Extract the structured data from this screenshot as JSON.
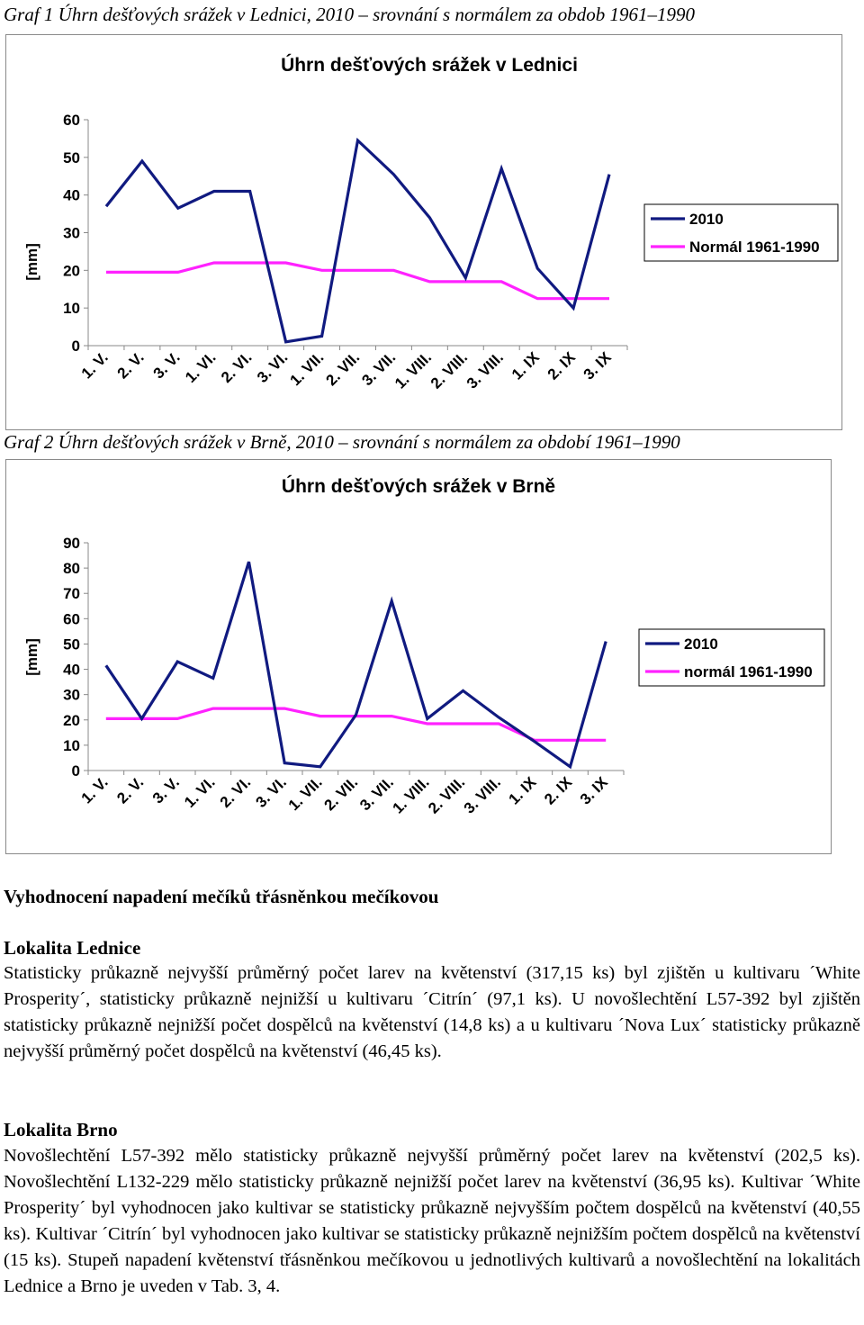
{
  "captions": {
    "graf1": "Graf 1 Úhrn dešťových srážek v Lednici, 2010 – srovnání s normálem za obdob 1961–1990",
    "graf2": "Graf 2 Úhrn dešťových srážek v Brně, 2010 – srovnání s normálem za období 1961–1990"
  },
  "colors": {
    "series_2010": "#101a80",
    "series_normal": "#ff22ff",
    "axis": "#888888"
  },
  "chart_data": [
    {
      "type": "line",
      "title": "Úhrn dešťových srážek v Lednici",
      "ylabel": "[mm]",
      "xlabel": "",
      "ylim": [
        0,
        60
      ],
      "yticks": [
        "0",
        "10",
        "20",
        "30",
        "40",
        "50",
        "60"
      ],
      "categories": [
        "1. V.",
        "2. V.",
        "3. V.",
        "1. VI.",
        "2. VI.",
        "3. VI.",
        "1. VII.",
        "2. VII.",
        "3. VII.",
        "1. VIII.",
        "2. VIII.",
        "3. VIII.",
        "1. IX",
        "2. IX",
        "3. IX"
      ],
      "legend_position": "right",
      "grid": false,
      "series": [
        {
          "name": "2010",
          "color": "#101a80",
          "values": [
            37,
            49,
            36.5,
            41,
            41,
            1,
            2.5,
            54.5,
            45.5,
            34,
            18,
            47,
            20.5,
            10,
            45.5
          ]
        },
        {
          "name": "Normál 1961-1990",
          "color": "#ff22ff",
          "values": [
            19.5,
            19.5,
            19.5,
            22,
            22,
            22,
            20,
            20,
            20,
            17,
            17,
            17,
            12.5,
            12.5,
            12.5
          ]
        }
      ]
    },
    {
      "type": "line",
      "title": "Úhrn dešťových srážek v Brně",
      "ylabel": "[mm]",
      "xlabel": "",
      "ylim": [
        0,
        90
      ],
      "yticks": [
        "0",
        "10",
        "20",
        "30",
        "40",
        "50",
        "60",
        "70",
        "80",
        "90"
      ],
      "categories": [
        "1. V.",
        "2. V.",
        "3. V.",
        "1. VI.",
        "2. VI.",
        "3. VI.",
        "1. VII.",
        "2. VII.",
        "3. VII.",
        "1. VIII.",
        "2. VIII.",
        "3. VIII.",
        "1. IX",
        "2. IX",
        "3. IX"
      ],
      "legend_position": "right",
      "grid": false,
      "series": [
        {
          "name": "2010",
          "color": "#101a80",
          "values": [
            41.5,
            20.5,
            43,
            36.5,
            82.5,
            3,
            1.5,
            22,
            67,
            20.5,
            31.5,
            21,
            11.5,
            1.5,
            51
          ]
        },
        {
          "name": "normál 1961-1990",
          "color": "#ff22ff",
          "values": [
            20.5,
            20.5,
            20.5,
            24.5,
            24.5,
            24.5,
            21.5,
            21.5,
            21.5,
            18.5,
            18.5,
            18.5,
            12,
            12,
            12
          ]
        }
      ]
    }
  ],
  "text": {
    "heading": "Vyhodnocení napadení mečíků třásněnkou mečíkovou",
    "lednice_heading": "Lokalita Lednice",
    "lednice_body": "Statisticky průkazně nejvyšší průměrný počet larev na květenství (317,15 ks) byl zjištěn u kultivaru ´White Prosperity´, statisticky průkazně nejnižší u kultivaru ´Citrín´ (97,1 ks). U novošlechtění L57-392 byl zjištěn statisticky průkazně nejnižší počet dospělců na květenství (14,8 ks) a u kultivaru ´Nova Lux´ statisticky průkazně nejvyšší průměrný počet dospělců na květenství (46,45 ks).",
    "brno_heading": "Lokalita Brno",
    "brno_body": "Novošlechtění L57-392 mělo statisticky průkazně nejvyšší průměrný počet larev na květenství (202,5 ks). Novošlechtění L132-229 mělo statisticky průkazně nejnižší počet larev na květenství (36,95 ks). Kultivar ´White Prosperity´ byl vyhodnocen jako kultivar se statisticky průkazně nejvyšším počtem dospělců na květenství (40,55 ks). Kultivar ´Citrín´ byl vyhodnocen jako kultivar se statisticky průkazně nejnižším počtem dospělců na květenství (15 ks). Stupeň napadení květenství třásněnkou mečíkovou u jednotlivých kultivarů a novošlechtění na lokalitách Lednice a Brno je uveden v Tab. 3, 4."
  }
}
